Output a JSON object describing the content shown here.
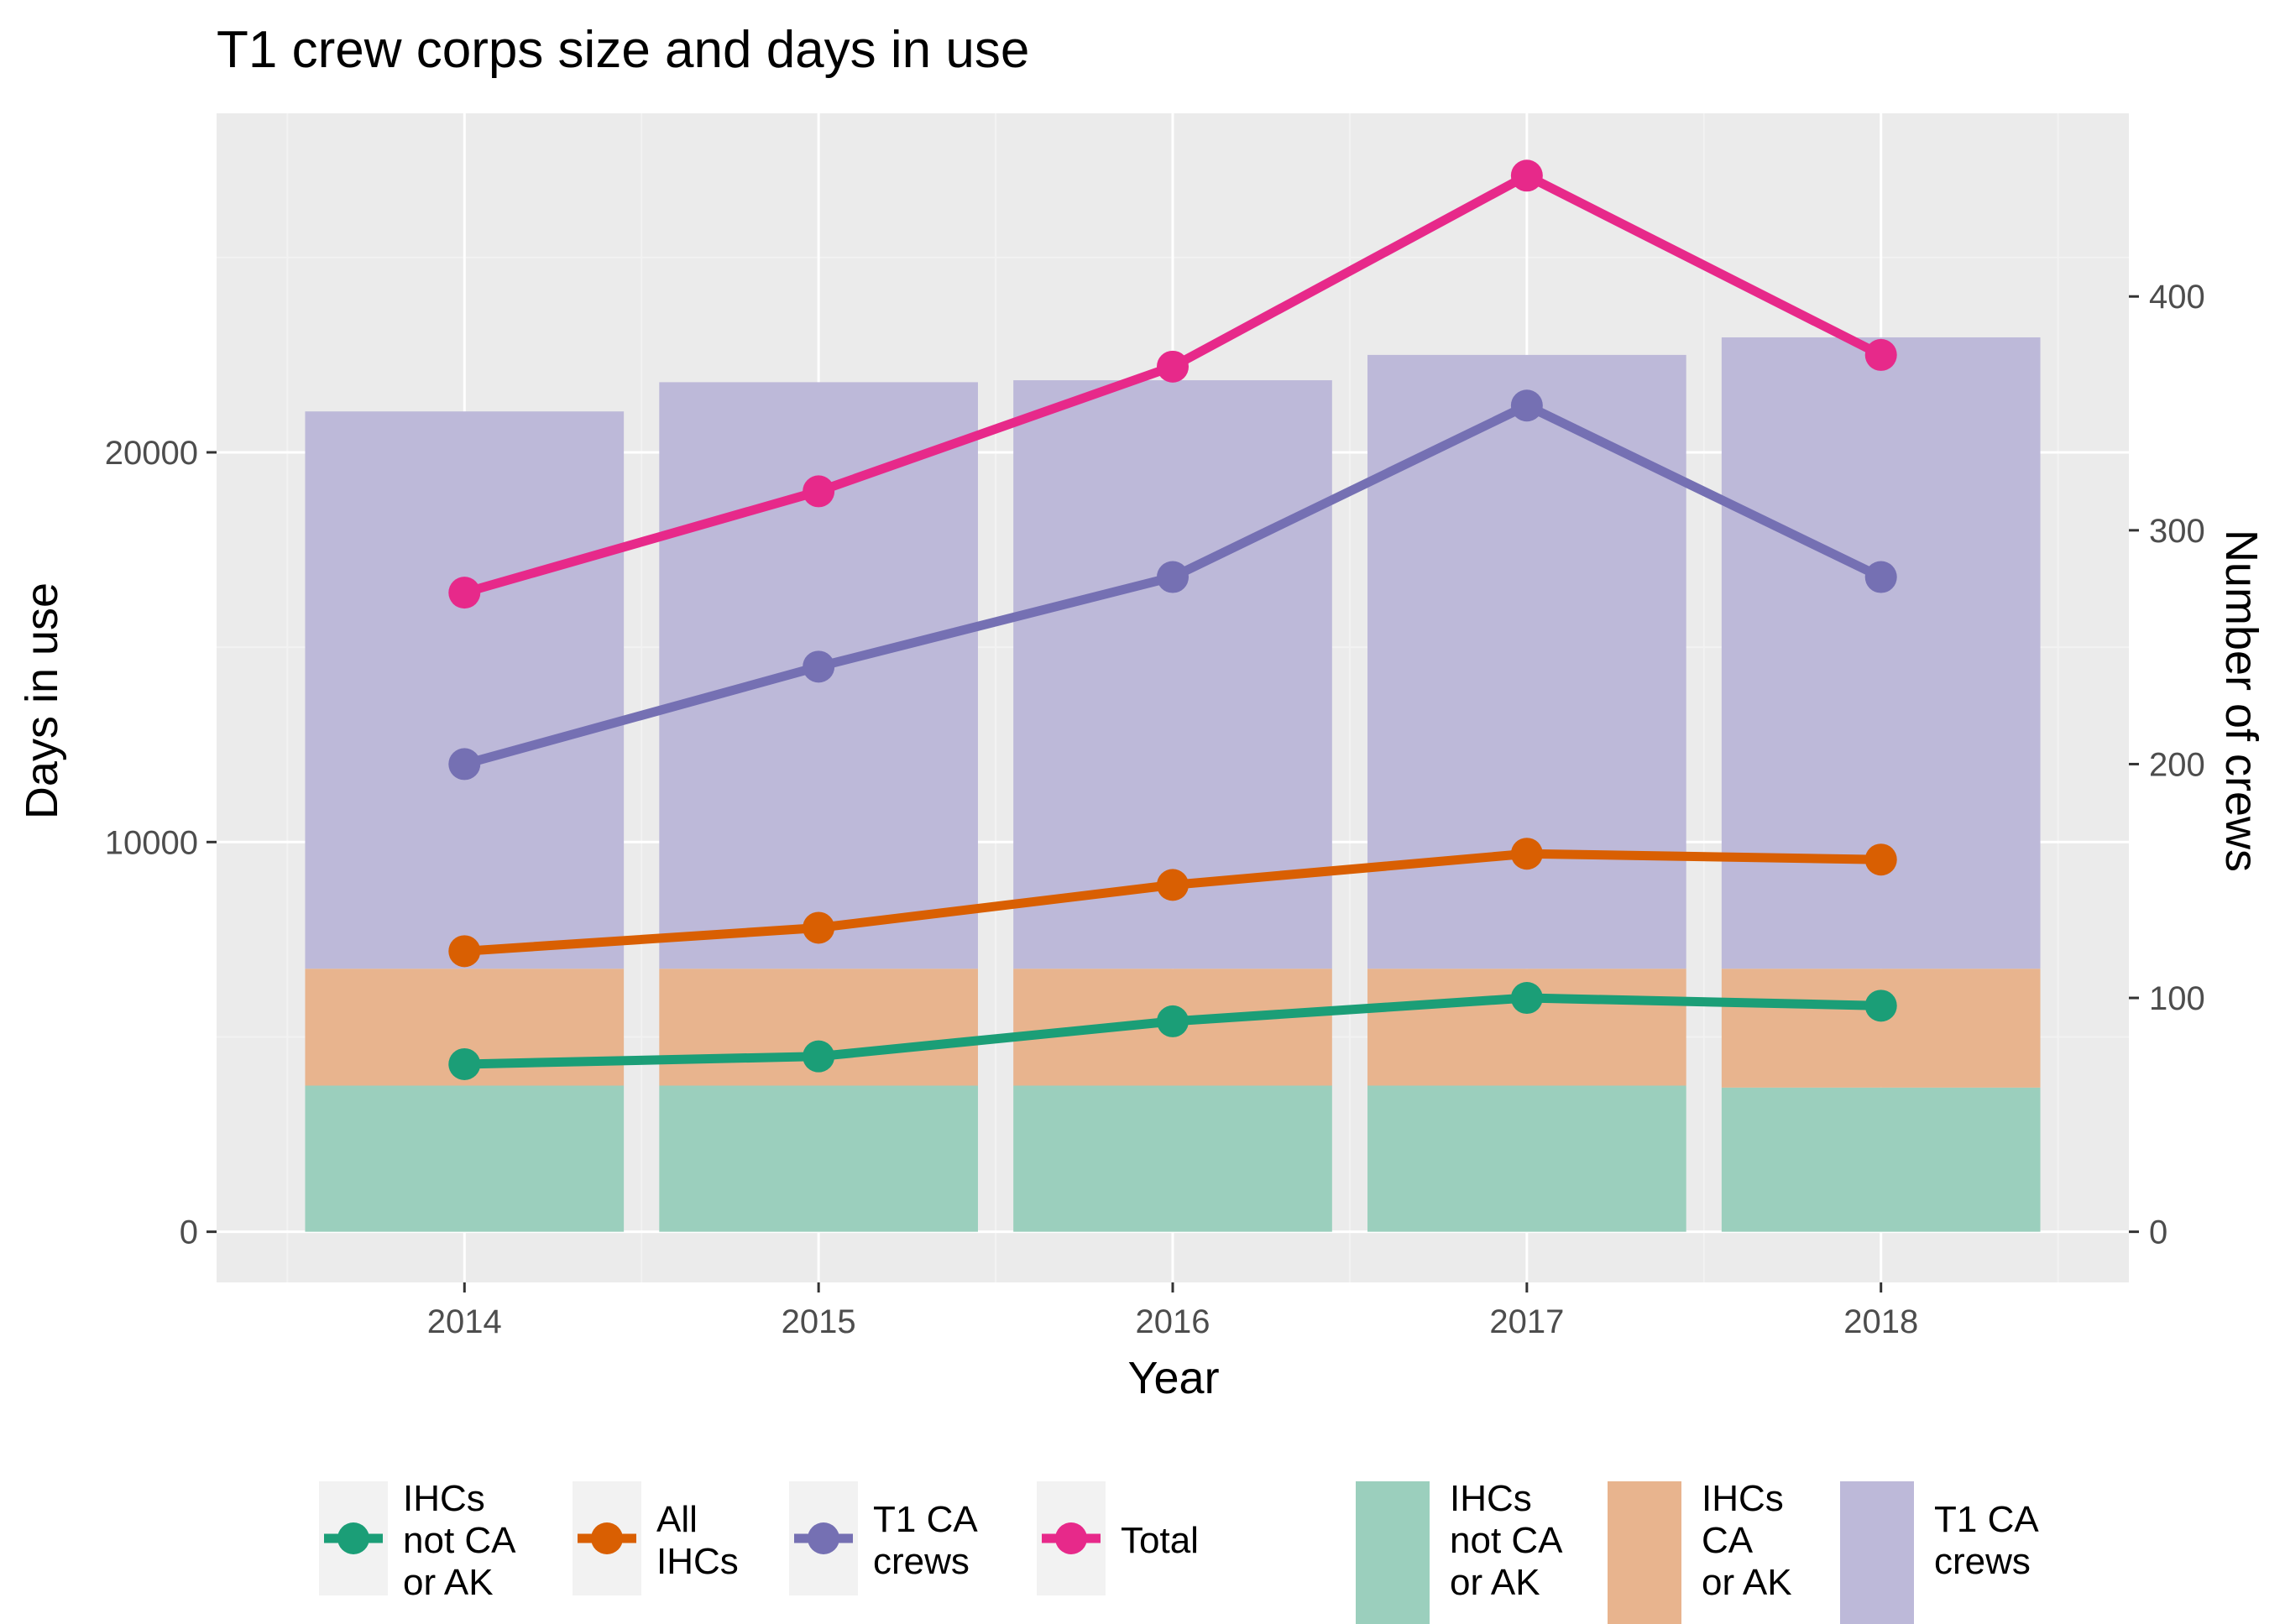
{
  "colors": {
    "panel_bg": "#ebebeb",
    "grid_major": "#ffffff",
    "grid_minor": "#f2f2f2",
    "tick": "#333333",
    "green": "#1b9e77",
    "orange": "#d95f02",
    "purple": "#7570b3",
    "pink": "#e7298a",
    "bar_green": "#9bcfbd",
    "bar_orange": "#e8b48e",
    "bar_purple": "#bdb9d9",
    "legend_key_bg": "#f2f2f2"
  },
  "chart_data": {
    "type": "bar",
    "title": "T1 crew corps size and days in use",
    "xlabel": "Year",
    "ylabel": "Days in use",
    "ylabel_right": "Number of crews",
    "categories": [
      "2014",
      "2015",
      "2016",
      "2017",
      "2018"
    ],
    "ylim": [
      -1300,
      28700
    ],
    "yticks": [
      0,
      10000,
      20000
    ],
    "ytick_labels": [
      "0",
      "10000",
      "20000"
    ],
    "right_axis_scale": 60,
    "right_ticks": [
      0,
      100,
      200,
      300,
      400
    ],
    "right_tick_labels": [
      "0",
      "100",
      "200",
      "300",
      "400"
    ],
    "stacked_bars": [
      {
        "name": "IHCs not CA or AK",
        "color_key": "bar_green",
        "values": [
          3750,
          3750,
          3750,
          3750,
          3700
        ]
      },
      {
        "name": "IHCs CA or AK",
        "color_key": "bar_orange",
        "values": [
          3000,
          3000,
          3000,
          3000,
          3050
        ]
      },
      {
        "name": "T1 CA crews",
        "color_key": "bar_purple",
        "values": [
          14300,
          15050,
          15100,
          15750,
          16200
        ]
      }
    ],
    "line_series": [
      {
        "name": "IHCs not CA or AK",
        "color_key": "green",
        "values": [
          4300,
          4500,
          5400,
          6000,
          5800
        ]
      },
      {
        "name": "All IHCs",
        "color_key": "orange",
        "values": [
          7200,
          7800,
          8900,
          9700,
          9550
        ]
      },
      {
        "name": "T1 CA crews",
        "color_key": "purple",
        "values": [
          12000,
          14500,
          16800,
          21200,
          16800
        ]
      },
      {
        "name": "Total",
        "color_key": "pink",
        "values": [
          16400,
          19000,
          22200,
          27100,
          22500
        ]
      }
    ],
    "legend": {
      "position": "bottom",
      "line_entries": [
        {
          "lines": [
            "IHCs",
            "not CA",
            "or AK"
          ],
          "color_key": "green"
        },
        {
          "lines": [
            "All",
            "IHCs"
          ],
          "color_key": "orange"
        },
        {
          "lines": [
            "T1 CA",
            "crews"
          ],
          "color_key": "purple"
        },
        {
          "lines": [
            "Total"
          ],
          "color_key": "pink"
        }
      ],
      "fill_entries": [
        {
          "lines": [
            "IHCs",
            "not CA",
            "or AK"
          ],
          "color_key": "bar_green"
        },
        {
          "lines": [
            "IHCs",
            "CA",
            "or AK"
          ],
          "color_key": "bar_orange"
        },
        {
          "lines": [
            "T1 CA",
            "crews"
          ],
          "color_key": "bar_purple"
        }
      ]
    }
  }
}
